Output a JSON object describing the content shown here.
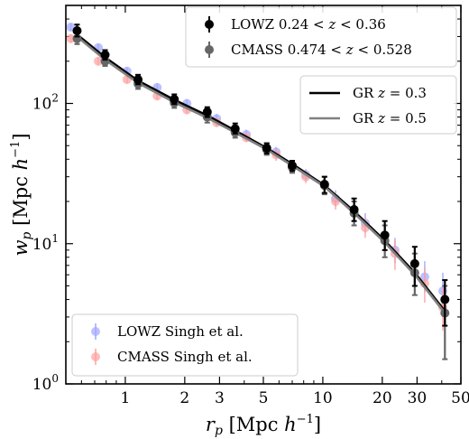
{
  "chart_data": {
    "type": "scatter",
    "scale": {
      "x": "log",
      "y": "log"
    },
    "xlim": [
      0.5,
      50
    ],
    "ylim": [
      1,
      500
    ],
    "xlabel": "r_p [Mpc h^-1]",
    "ylabel": "w_p [Mpc h^-1]",
    "xticks": [
      1,
      2,
      3,
      5,
      10,
      20,
      30,
      50
    ],
    "yticks": [
      1,
      10,
      100
    ],
    "xtick_labels": [
      "1",
      "2",
      "3",
      "5",
      "10",
      "20",
      "30",
      "50"
    ],
    "ytick_labels": [
      "1",
      "1",
      "1"
    ],
    "ytick_exponents": [
      "0",
      "1",
      "2"
    ],
    "series": [
      {
        "name": "LOWZ 0.24 < z < 0.36",
        "color": "#000000",
        "style": "errorbar",
        "points": [
          {
            "x": 0.57,
            "y": 330,
            "lo": 300,
            "hi": 365
          },
          {
            "x": 0.79,
            "y": 222,
            "lo": 205,
            "hi": 240
          },
          {
            "x": 1.16,
            "y": 148,
            "lo": 137,
            "hi": 160
          },
          {
            "x": 1.77,
            "y": 107,
            "lo": 99,
            "hi": 116
          },
          {
            "x": 2.6,
            "y": 87,
            "lo": 80,
            "hi": 94
          },
          {
            "x": 3.6,
            "y": 66,
            "lo": 61,
            "hi": 72
          },
          {
            "x": 5.2,
            "y": 48,
            "lo": 44,
            "hi": 52
          },
          {
            "x": 7.0,
            "y": 36,
            "lo": 33,
            "hi": 39
          },
          {
            "x": 10.2,
            "y": 26.5,
            "lo": 23,
            "hi": 30
          },
          {
            "x": 14.4,
            "y": 17.5,
            "lo": 14.5,
            "hi": 21
          },
          {
            "x": 20.6,
            "y": 11.5,
            "lo": 9,
            "hi": 14.5
          },
          {
            "x": 29.2,
            "y": 7.2,
            "lo": 5,
            "hi": 9.5
          },
          {
            "x": 41.5,
            "y": 4.0,
            "lo": 2.6,
            "hi": 5.5
          }
        ]
      },
      {
        "name": "CMASS 0.474 < z < 0.528",
        "color": "#666666",
        "style": "errorbar",
        "points": [
          {
            "x": 0.57,
            "y": 290,
            "lo": 265,
            "hi": 318
          },
          {
            "x": 0.79,
            "y": 200,
            "lo": 185,
            "hi": 218
          },
          {
            "x": 1.16,
            "y": 138,
            "lo": 127,
            "hi": 150
          },
          {
            "x": 1.77,
            "y": 101,
            "lo": 93,
            "hi": 110
          },
          {
            "x": 2.6,
            "y": 80,
            "lo": 73,
            "hi": 88
          },
          {
            "x": 3.6,
            "y": 62,
            "lo": 57,
            "hi": 68
          },
          {
            "x": 5.2,
            "y": 47,
            "lo": 43,
            "hi": 52
          },
          {
            "x": 7.0,
            "y": 35,
            "lo": 32,
            "hi": 39
          },
          {
            "x": 10.2,
            "y": 26,
            "lo": 22.5,
            "hi": 30
          },
          {
            "x": 14.4,
            "y": 16.5,
            "lo": 13.5,
            "hi": 20
          },
          {
            "x": 20.6,
            "y": 10.5,
            "lo": 8,
            "hi": 13.5
          },
          {
            "x": 29.2,
            "y": 6.2,
            "lo": 4.3,
            "hi": 8.5
          },
          {
            "x": 41.5,
            "y": 3.2,
            "lo": 1.5,
            "hi": 5.0
          }
        ]
      },
      {
        "name": "LOWZ Singh et al.",
        "color": "#a0a6ff",
        "style": "errorbar-faint",
        "points": [
          {
            "x": 0.53,
            "y": 350,
            "lo": 330,
            "hi": 372
          },
          {
            "x": 0.73,
            "y": 250,
            "lo": 235,
            "hi": 266
          },
          {
            "x": 1.02,
            "y": 170,
            "lo": 160,
            "hi": 181
          },
          {
            "x": 1.45,
            "y": 130,
            "lo": 122,
            "hi": 139
          },
          {
            "x": 2.05,
            "y": 100,
            "lo": 93,
            "hi": 107
          },
          {
            "x": 2.9,
            "y": 78,
            "lo": 72,
            "hi": 84
          },
          {
            "x": 4.1,
            "y": 60,
            "lo": 55,
            "hi": 65
          },
          {
            "x": 5.8,
            "y": 45,
            "lo": 41,
            "hi": 49
          },
          {
            "x": 8.2,
            "y": 31,
            "lo": 28,
            "hi": 34
          },
          {
            "x": 11.6,
            "y": 21,
            "lo": 18.5,
            "hi": 24
          },
          {
            "x": 16.4,
            "y": 14,
            "lo": 12,
            "hi": 16.5
          },
          {
            "x": 23.2,
            "y": 9,
            "lo": 7.3,
            "hi": 11
          },
          {
            "x": 32.8,
            "y": 5.8,
            "lo": 4.5,
            "hi": 7.5
          },
          {
            "x": 40.5,
            "y": 4.6,
            "lo": 3.2,
            "hi": 6.2
          }
        ]
      },
      {
        "name": "CMASS Singh et al.",
        "color": "#ffa0a0",
        "style": "errorbar-faint",
        "points": [
          {
            "x": 0.53,
            "y": 290,
            "lo": 270,
            "hi": 312
          },
          {
            "x": 0.73,
            "y": 200,
            "lo": 187,
            "hi": 214
          },
          {
            "x": 1.02,
            "y": 148,
            "lo": 139,
            "hi": 158
          },
          {
            "x": 1.45,
            "y": 113,
            "lo": 106,
            "hi": 121
          },
          {
            "x": 2.05,
            "y": 90,
            "lo": 84,
            "hi": 97
          },
          {
            "x": 2.9,
            "y": 73,
            "lo": 68,
            "hi": 79
          },
          {
            "x": 4.1,
            "y": 57,
            "lo": 53,
            "hi": 62
          },
          {
            "x": 5.8,
            "y": 43,
            "lo": 39,
            "hi": 47
          },
          {
            "x": 8.2,
            "y": 30,
            "lo": 27,
            "hi": 33
          },
          {
            "x": 11.6,
            "y": 20,
            "lo": 17.5,
            "hi": 23
          },
          {
            "x": 16.4,
            "y": 13,
            "lo": 11,
            "hi": 15.5
          },
          {
            "x": 23.2,
            "y": 8.5,
            "lo": 6.5,
            "hi": 10.5
          },
          {
            "x": 32.8,
            "y": 5.2,
            "lo": 3.8,
            "hi": 6.8
          },
          {
            "x": 40.5,
            "y": 3.5,
            "lo": 2.4,
            "hi": 4.8
          }
        ]
      }
    ],
    "lines": [
      {
        "name": "GR z = 0.3",
        "color": "#000000",
        "points": [
          [
            0.57,
            310
          ],
          [
            0.79,
            213
          ],
          [
            1.16,
            145
          ],
          [
            1.77,
            106
          ],
          [
            2.6,
            82
          ],
          [
            3.6,
            64
          ],
          [
            5.2,
            48
          ],
          [
            7.0,
            37
          ],
          [
            10.2,
            26
          ],
          [
            14.4,
            17
          ],
          [
            20.6,
            10.5
          ],
          [
            29.2,
            6.2
          ],
          [
            41.5,
            3.3
          ]
        ]
      },
      {
        "name": "GR z = 0.5",
        "color": "#808080",
        "points": [
          [
            0.57,
            300
          ],
          [
            0.79,
            205
          ],
          [
            1.16,
            140
          ],
          [
            1.77,
            102
          ],
          [
            2.6,
            79
          ],
          [
            3.6,
            62
          ],
          [
            5.2,
            47
          ],
          [
            7.0,
            36
          ],
          [
            10.2,
            25.5
          ],
          [
            14.4,
            16.5
          ],
          [
            20.6,
            10.2
          ],
          [
            29.2,
            6.0
          ],
          [
            41.5,
            3.2
          ]
        ]
      }
    ],
    "legends": [
      {
        "position": "top-right",
        "entries": [
          {
            "series": 0,
            "text": "LOWZ 0.24 < z < 0.36"
          },
          {
            "series": 1,
            "text": "CMASS 0.474 < z < 0.528"
          }
        ]
      },
      {
        "position": "upper-right",
        "entries": [
          {
            "line": 0,
            "text": "GR z = 0.3"
          },
          {
            "line": 1,
            "text": "GR z = 0.5"
          }
        ]
      },
      {
        "position": "lower-left",
        "entries": [
          {
            "series": 2,
            "text": "LOWZ Singh et al."
          },
          {
            "series": 3,
            "text": "CMASS Singh et al."
          }
        ]
      }
    ]
  }
}
